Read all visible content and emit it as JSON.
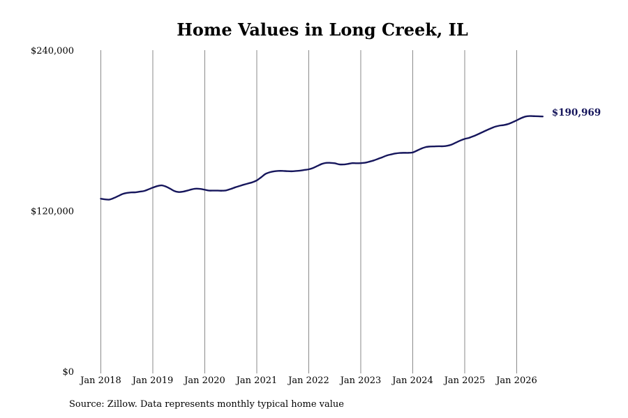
{
  "title": "Home Values in Long Creek, IL",
  "source": "Source: Zillow. Data represents monthly typical home value",
  "end_label": "$190,969",
  "colors": {
    "line": "#16165c",
    "grid": "#8a8a8a"
  },
  "chart_data": {
    "type": "line",
    "title": "Home Values in Long Creek, IL",
    "xlabel": "",
    "ylabel": "",
    "ylim": [
      0,
      240000
    ],
    "y_ticks": [
      {
        "value": 0,
        "label": "$0"
      },
      {
        "value": 120000,
        "label": "$120,000"
      },
      {
        "value": 240000,
        "label": "$240,000"
      }
    ],
    "x_ticks": [
      {
        "value": "2018-01",
        "label": "Jan 2018"
      },
      {
        "value": "2019-01",
        "label": "Jan 2019"
      },
      {
        "value": "2020-01",
        "label": "Jan 2020"
      },
      {
        "value": "2021-01",
        "label": "Jan 2021"
      },
      {
        "value": "2022-01",
        "label": "Jan 2022"
      },
      {
        "value": "2023-01",
        "label": "Jan 2023"
      },
      {
        "value": "2024-01",
        "label": "Jan 2024"
      },
      {
        "value": "2025-01",
        "label": "Jan 2025"
      },
      {
        "value": "2026-01",
        "label": "Jan 2026"
      }
    ],
    "grid": "vertical",
    "legend": "none",
    "series": [
      {
        "points": [
          [
            "2018-01",
            129500
          ],
          [
            "2018-02",
            129000
          ],
          [
            "2018-03",
            128900
          ],
          [
            "2018-04",
            130000
          ],
          [
            "2018-05",
            131500
          ],
          [
            "2018-06",
            133000
          ],
          [
            "2018-07",
            133800
          ],
          [
            "2018-08",
            134200
          ],
          [
            "2018-09",
            134300
          ],
          [
            "2018-10",
            134800
          ],
          [
            "2018-11",
            135300
          ],
          [
            "2018-12",
            136500
          ],
          [
            "2019-01",
            137800
          ],
          [
            "2019-02",
            138900
          ],
          [
            "2019-03",
            139500
          ],
          [
            "2019-04",
            138600
          ],
          [
            "2019-05",
            137000
          ],
          [
            "2019-06",
            135200
          ],
          [
            "2019-07",
            134500
          ],
          [
            "2019-08",
            134800
          ],
          [
            "2019-09",
            135600
          ],
          [
            "2019-10",
            136500
          ],
          [
            "2019-11",
            137000
          ],
          [
            "2019-12",
            136800
          ],
          [
            "2020-01",
            136200
          ],
          [
            "2020-02",
            135600
          ],
          [
            "2020-03",
            135600
          ],
          [
            "2020-04",
            135600
          ],
          [
            "2020-05",
            135500
          ],
          [
            "2020-06",
            135800
          ],
          [
            "2020-07",
            136800
          ],
          [
            "2020-08",
            138000
          ],
          [
            "2020-09",
            139000
          ],
          [
            "2020-10",
            140000
          ],
          [
            "2020-11",
            140900
          ],
          [
            "2020-12",
            141800
          ],
          [
            "2021-01",
            143200
          ],
          [
            "2021-02",
            145500
          ],
          [
            "2021-03",
            148000
          ],
          [
            "2021-04",
            149300
          ],
          [
            "2021-05",
            150000
          ],
          [
            "2021-06",
            150300
          ],
          [
            "2021-07",
            150300
          ],
          [
            "2021-08",
            150100
          ],
          [
            "2021-09",
            150000
          ],
          [
            "2021-10",
            150200
          ],
          [
            "2021-11",
            150500
          ],
          [
            "2021-12",
            151000
          ],
          [
            "2022-01",
            151500
          ],
          [
            "2022-02",
            152500
          ],
          [
            "2022-03",
            154000
          ],
          [
            "2022-04",
            155500
          ],
          [
            "2022-05",
            156300
          ],
          [
            "2022-06",
            156300
          ],
          [
            "2022-07",
            156000
          ],
          [
            "2022-08",
            155200
          ],
          [
            "2022-09",
            155100
          ],
          [
            "2022-10",
            155500
          ],
          [
            "2022-11",
            156100
          ],
          [
            "2022-12",
            156000
          ],
          [
            "2023-01",
            156100
          ],
          [
            "2023-02",
            156400
          ],
          [
            "2023-03",
            157200
          ],
          [
            "2023-04",
            158100
          ],
          [
            "2023-05",
            159300
          ],
          [
            "2023-06",
            160500
          ],
          [
            "2023-07",
            161800
          ],
          [
            "2023-08",
            162600
          ],
          [
            "2023-09",
            163300
          ],
          [
            "2023-10",
            163700
          ],
          [
            "2023-11",
            163800
          ],
          [
            "2023-12",
            163800
          ],
          [
            "2024-01",
            164100
          ],
          [
            "2024-02",
            165500
          ],
          [
            "2024-03",
            167000
          ],
          [
            "2024-04",
            168100
          ],
          [
            "2024-05",
            168500
          ],
          [
            "2024-06",
            168600
          ],
          [
            "2024-07",
            168700
          ],
          [
            "2024-08",
            168700
          ],
          [
            "2024-09",
            169100
          ],
          [
            "2024-10",
            170000
          ],
          [
            "2024-11",
            171500
          ],
          [
            "2024-12",
            173000
          ],
          [
            "2025-01",
            174200
          ],
          [
            "2025-02",
            175000
          ],
          [
            "2025-03",
            176200
          ],
          [
            "2025-04",
            177600
          ],
          [
            "2025-05",
            179100
          ],
          [
            "2025-06",
            180600
          ],
          [
            "2025-07",
            182000
          ],
          [
            "2025-08",
            183300
          ],
          [
            "2025-09",
            184100
          ],
          [
            "2025-10",
            184500
          ],
          [
            "2025-11",
            185300
          ],
          [
            "2025-12",
            186600
          ],
          [
            "2026-01",
            188100
          ],
          [
            "2026-02",
            189700
          ],
          [
            "2026-03",
            190900
          ],
          [
            "2026-04",
            191300
          ],
          [
            "2026-05",
            191200
          ],
          [
            "2026-06",
            191100
          ],
          [
            "2026-07",
            190969
          ]
        ]
      }
    ]
  }
}
